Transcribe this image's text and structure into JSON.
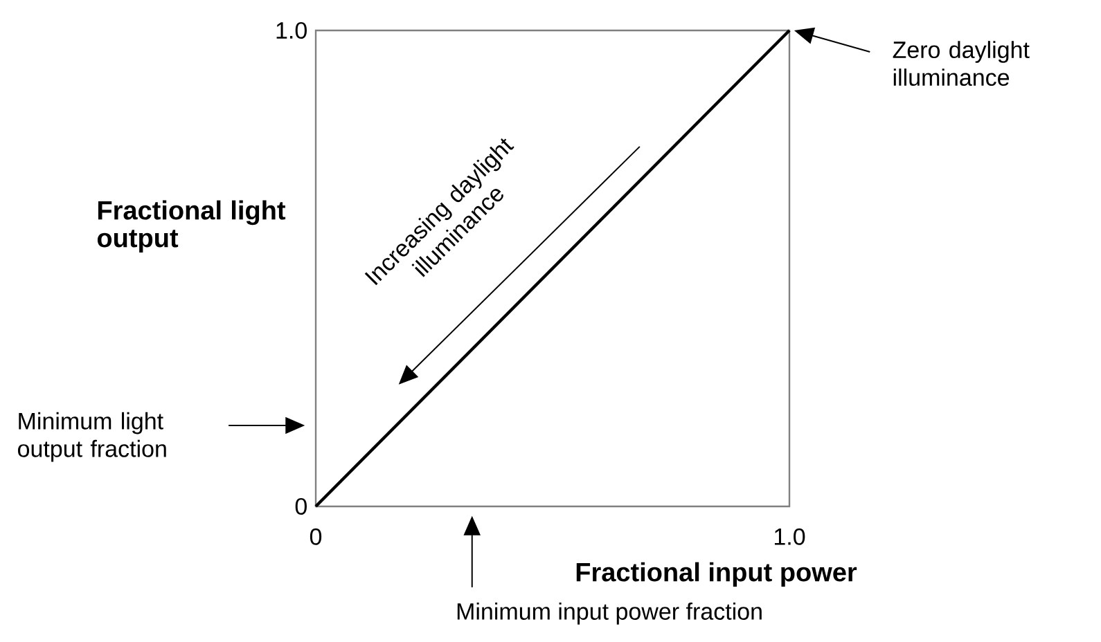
{
  "chart_data": {
    "type": "line",
    "xlabel": "Fractional input power",
    "ylabel": "Fractional light output",
    "x": [
      0,
      1
    ],
    "series": [
      {
        "color": "#000000",
        "values": [
          0,
          1
        ]
      }
    ],
    "xlim": [
      0,
      1
    ],
    "ylim": [
      0,
      1
    ],
    "xticks": [
      0,
      {
        "value": 1,
        "label": "1.0"
      }
    ],
    "yticks": [
      0,
      {
        "value": 1,
        "label": "1.0"
      }
    ],
    "marker": "none",
    "line_style": "solid",
    "annotations": [
      "Zero daylight illuminance",
      "Minimum light output fraction",
      "Minimum input power fraction",
      "Increasing daylight illuminance"
    ]
  }
}
